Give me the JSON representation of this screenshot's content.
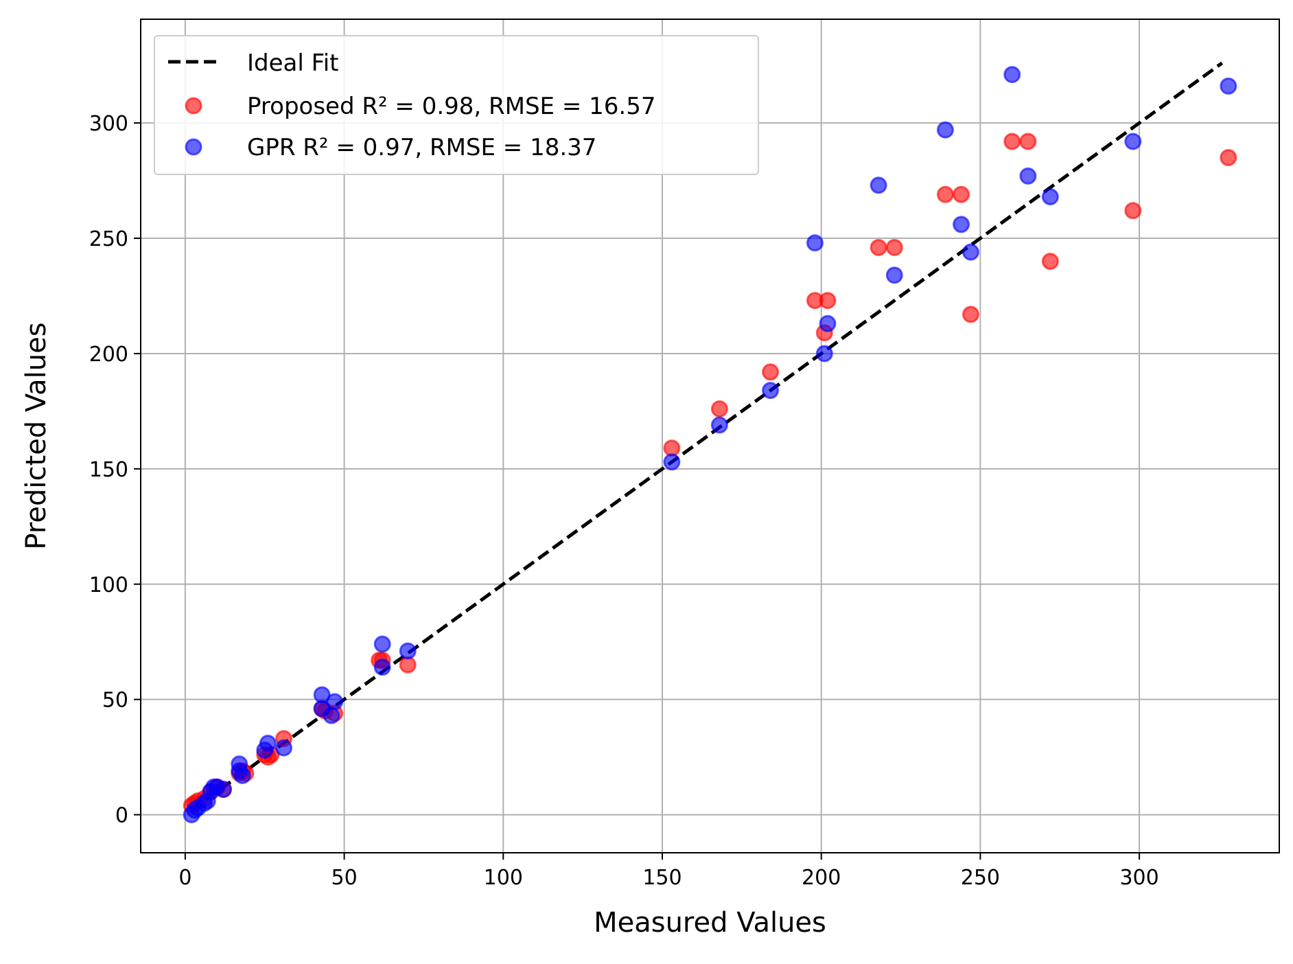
{
  "chart_data": {
    "type": "scatter",
    "title": "",
    "xlabel": "Measured Values",
    "ylabel": "Predicted Values",
    "xlim": [
      -14,
      344
    ],
    "ylim": [
      -16.5,
      345
    ],
    "xticks": [
      0,
      50,
      100,
      150,
      200,
      250,
      300
    ],
    "yticks": [
      0,
      50,
      100,
      150,
      200,
      250,
      300
    ],
    "grid": true,
    "legend_position": "top-left",
    "ideal_fit": {
      "name": "Ideal Fit",
      "x": [
        2,
        326
      ],
      "y": [
        2,
        326
      ],
      "color": "#000000",
      "style": "dashed"
    },
    "series": [
      {
        "name": "Proposed R² = 0.98, RMSE = 16.57",
        "color": "#ff0000",
        "points": [
          [
            2,
            4
          ],
          [
            3,
            5
          ],
          [
            4,
            6
          ],
          [
            6,
            7
          ],
          [
            8,
            10
          ],
          [
            10,
            12
          ],
          [
            12,
            11
          ],
          [
            17,
            18
          ],
          [
            18,
            19
          ],
          [
            19,
            18
          ],
          [
            25,
            26
          ],
          [
            26,
            25
          ],
          [
            27,
            26
          ],
          [
            31,
            33
          ],
          [
            43,
            46
          ],
          [
            44,
            45
          ],
          [
            47,
            44
          ],
          [
            61,
            67
          ],
          [
            62,
            67
          ],
          [
            70,
            65
          ],
          [
            153,
            159
          ],
          [
            168,
            176
          ],
          [
            184,
            192
          ],
          [
            198,
            223
          ],
          [
            201,
            209
          ],
          [
            202,
            223
          ],
          [
            218,
            246
          ],
          [
            223,
            246
          ],
          [
            239,
            269
          ],
          [
            244,
            269
          ],
          [
            247,
            217
          ],
          [
            260,
            292
          ],
          [
            265,
            292
          ],
          [
            272,
            240
          ],
          [
            298,
            262
          ],
          [
            328,
            285
          ]
        ]
      },
      {
        "name": "GPR R² = 0.97, RMSE = 18.37",
        "color": "#0000ff",
        "points": [
          [
            2,
            0
          ],
          [
            3,
            2
          ],
          [
            4,
            3
          ],
          [
            6,
            5
          ],
          [
            7,
            6
          ],
          [
            8,
            10
          ],
          [
            9,
            12
          ],
          [
            10,
            12
          ],
          [
            12,
            11
          ],
          [
            17,
            19
          ],
          [
            17,
            22
          ],
          [
            18,
            17
          ],
          [
            25,
            28
          ],
          [
            26,
            31
          ],
          [
            31,
            29
          ],
          [
            43,
            52
          ],
          [
            43,
            46
          ],
          [
            46,
            43
          ],
          [
            47,
            49
          ],
          [
            62,
            64
          ],
          [
            62,
            74
          ],
          [
            70,
            71
          ],
          [
            153,
            153
          ],
          [
            168,
            169
          ],
          [
            184,
            184
          ],
          [
            198,
            248
          ],
          [
            201,
            200
          ],
          [
            202,
            213
          ],
          [
            218,
            273
          ],
          [
            223,
            234
          ],
          [
            239,
            297
          ],
          [
            244,
            256
          ],
          [
            247,
            244
          ],
          [
            260,
            321
          ],
          [
            265,
            277
          ],
          [
            272,
            268
          ],
          [
            298,
            292
          ],
          [
            328,
            316
          ]
        ]
      }
    ]
  }
}
